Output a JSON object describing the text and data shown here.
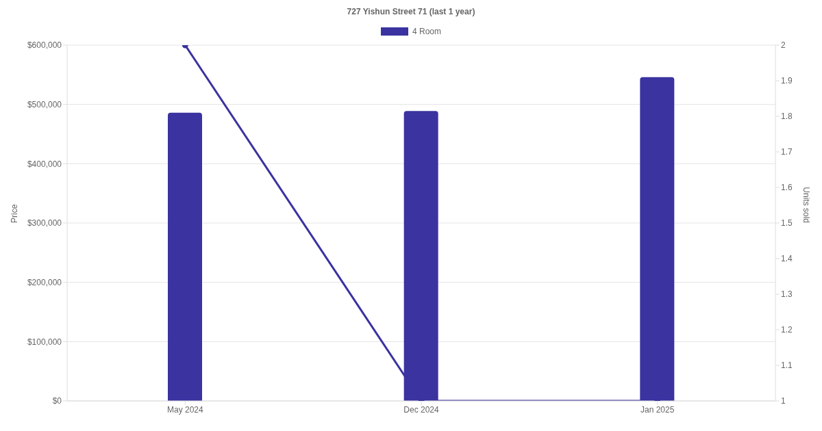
{
  "chart_data": {
    "type": "bar",
    "title": "727 Yishun Street 71 (last 1 year)",
    "categories": [
      "May 2024",
      "Dec 2024",
      "Jan 2025"
    ],
    "series": [
      {
        "name": "4 Room",
        "color": "#3a33a0",
        "values": [
          486000,
          489000,
          546000
        ]
      },
      {
        "type": "line",
        "axis": "y2",
        "color": "#3a33a0",
        "values": [
          2,
          1,
          1
        ]
      }
    ],
    "ylabel": "Price",
    "y2label": "Units sold",
    "ylim": [
      0,
      600000
    ],
    "yticks": [
      {
        "value": 0,
        "label": "$0"
      },
      {
        "value": 100000,
        "label": "$100,000"
      },
      {
        "value": 200000,
        "label": "$200,000"
      },
      {
        "value": 300000,
        "label": "$300,000"
      },
      {
        "value": 400000,
        "label": "$400,000"
      },
      {
        "value": 500000,
        "label": "$500,000"
      },
      {
        "value": 600000,
        "label": "$600,000"
      }
    ],
    "y2lim": [
      1,
      2
    ],
    "y2ticks": [
      1,
      1.1,
      1.2,
      1.3,
      1.4,
      1.5,
      1.6,
      1.7,
      1.8,
      1.9,
      2
    ],
    "grid": "y",
    "legend": "top",
    "marker": "circle",
    "line_style": "solid"
  }
}
